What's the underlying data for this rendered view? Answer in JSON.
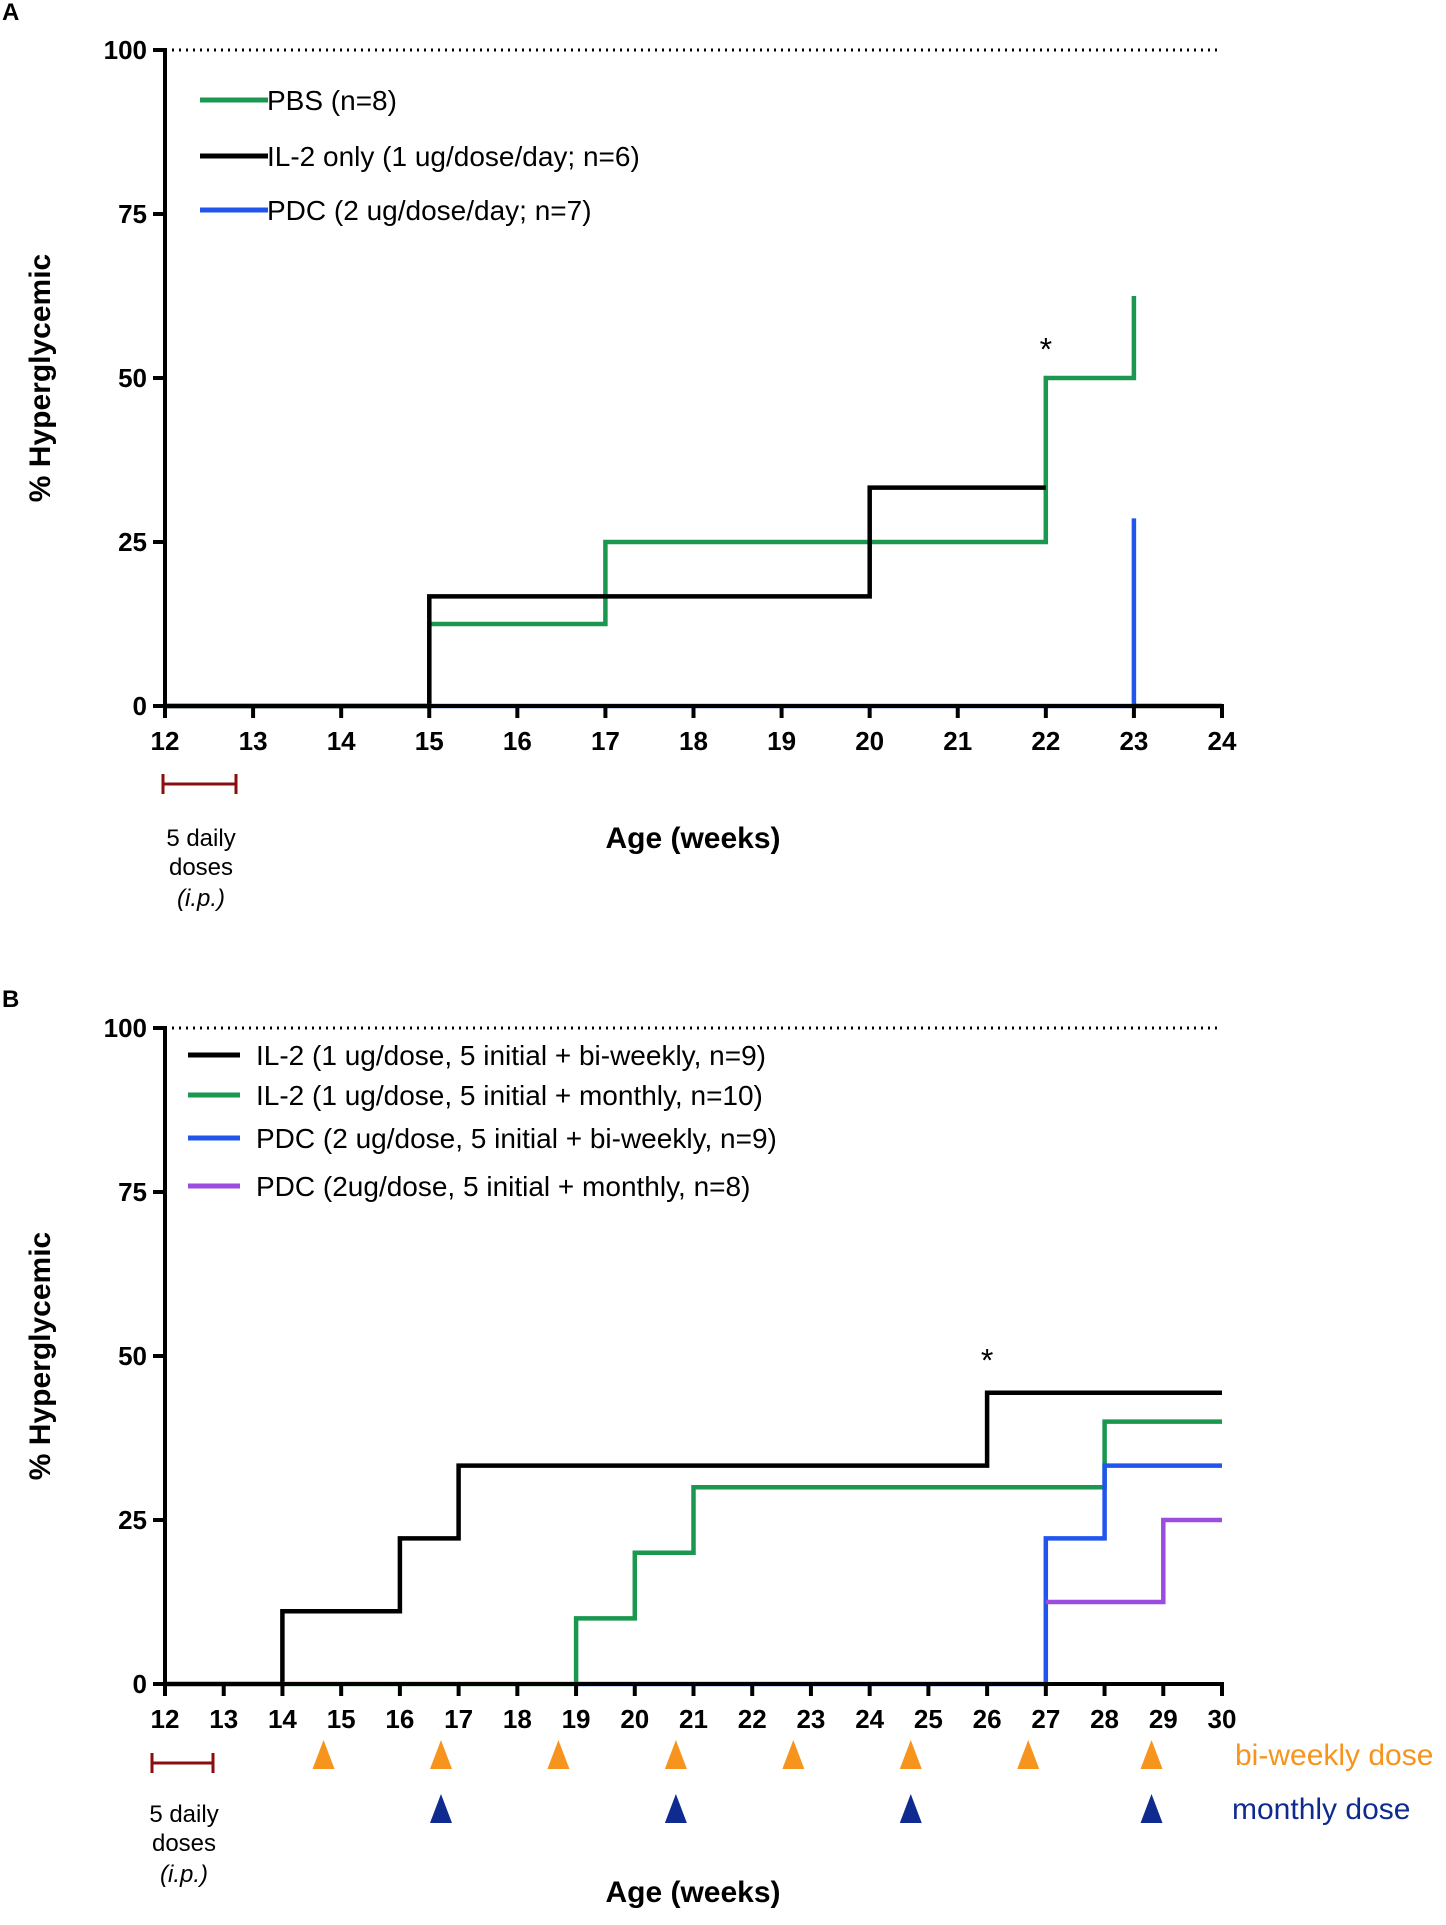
{
  "chart_data": [
    {
      "panel": "A",
      "type": "line",
      "step": true,
      "ylabel": "% Hyperglycemic",
      "xlabel": "Age (weeks)",
      "ylim": [
        0,
        100
      ],
      "yticks": [
        0,
        25,
        50,
        75,
        100
      ],
      "xticks": [
        "12",
        "13",
        "14",
        "15",
        "16",
        "17",
        "18",
        "19",
        "20",
        "21",
        "22",
        "23",
        "24"
      ],
      "reference_line": {
        "y": 100,
        "style": "dotted"
      },
      "annotation": {
        "text": "*",
        "x_tick": "22",
        "y": 56
      },
      "treatment_note": {
        "line1": "5 daily",
        "line2": "doses",
        "line3": "(i.p.)",
        "from_tick": "12",
        "to_tick": "13"
      },
      "legend_position": "top-left",
      "series": [
        {
          "name": "PBS (n=8)",
          "color": "#1a9850",
          "x_ticks": [
            "12",
            "15",
            "15",
            "17",
            "17",
            "22",
            "22",
            "23",
            "23"
          ],
          "values": [
            0,
            0,
            12.5,
            12.5,
            25,
            25,
            50,
            50,
            62.5
          ]
        },
        {
          "name": "IL-2 only (1 ug/dose/day; n=6)",
          "color": "#000000",
          "x_ticks": [
            "12",
            "15",
            "15",
            "20",
            "20",
            "22"
          ],
          "values": [
            0,
            0,
            16.7,
            16.7,
            33.3,
            33.3
          ]
        },
        {
          "name": "PDC (2 ug/dose/day; n=7)",
          "color": "#2255ee",
          "x_ticks": [
            "15",
            "23",
            "23"
          ],
          "values": [
            0,
            0,
            28.6
          ]
        },
        {
          "name": "",
          "color": "#000000",
          "x_ticks": [
            "23",
            "24"
          ],
          "values": [
            0,
            0
          ]
        }
      ]
    },
    {
      "panel": "B",
      "type": "line",
      "step": true,
      "ylabel": "% Hyperglycemic",
      "xlabel": "Age (weeks)",
      "ylim": [
        0,
        100
      ],
      "yticks": [
        0,
        25,
        50,
        75,
        100
      ],
      "xticks": [
        "12",
        "13",
        "14",
        "15",
        "16",
        "17",
        "18",
        "19",
        "20",
        "21",
        "22",
        "23",
        "24",
        "25",
        "26",
        "27",
        "28",
        "29",
        "30"
      ],
      "reference_line": {
        "y": 100,
        "style": "dotted"
      },
      "annotation": {
        "text": "*",
        "x": 26,
        "y": 51
      },
      "treatment_note": {
        "line1": "5 daily",
        "line2": "doses",
        "line3": "(i.p.)",
        "from": 12,
        "to": 13
      },
      "legend_position": "top-left",
      "series": [
        {
          "name": "IL-2 (1 ug/dose, 5 initial + bi-weekly, n=9)",
          "color": "#000000",
          "x": [
            12,
            14,
            14,
            16,
            16,
            17,
            17,
            26,
            26,
            30
          ],
          "values": [
            0,
            0,
            11.1,
            11.1,
            22.2,
            22.2,
            33.3,
            33.3,
            44.4,
            44.4
          ]
        },
        {
          "name": "IL-2 (1 ug/dose, 5 initial + monthly, n=10)",
          "color": "#1a9850",
          "x": [
            14,
            19,
            19,
            20,
            20,
            21,
            21,
            28,
            28,
            30
          ],
          "values": [
            0,
            0,
            10,
            10,
            20,
            20,
            30,
            30,
            40,
            40
          ]
        },
        {
          "name": "PDC (2 ug/dose, 5 initial + bi-weekly, n=9)",
          "color": "#2255ee",
          "x": [
            19,
            27,
            27,
            28,
            28,
            30
          ],
          "values": [
            0,
            0,
            22.2,
            22.2,
            33.3,
            33.3
          ]
        },
        {
          "name": "PDC (2ug/dose, 5 initial + monthly, n=8)",
          "color": "#9b4de0",
          "x": [
            27,
            29,
            29,
            30
          ],
          "values": [
            12.5,
            12.5,
            25,
            25
          ]
        }
      ],
      "dose_markers": {
        "biweekly": {
          "label": "bi-weekly dose",
          "color": "#f7941d",
          "x": [
            14.7,
            16.7,
            18.7,
            20.7,
            22.7,
            24.7,
            26.7,
            28.8
          ]
        },
        "monthly": {
          "label": "monthly dose",
          "color": "#102b8f",
          "x": [
            16.7,
            20.7,
            24.7,
            28.8
          ]
        }
      }
    }
  ]
}
